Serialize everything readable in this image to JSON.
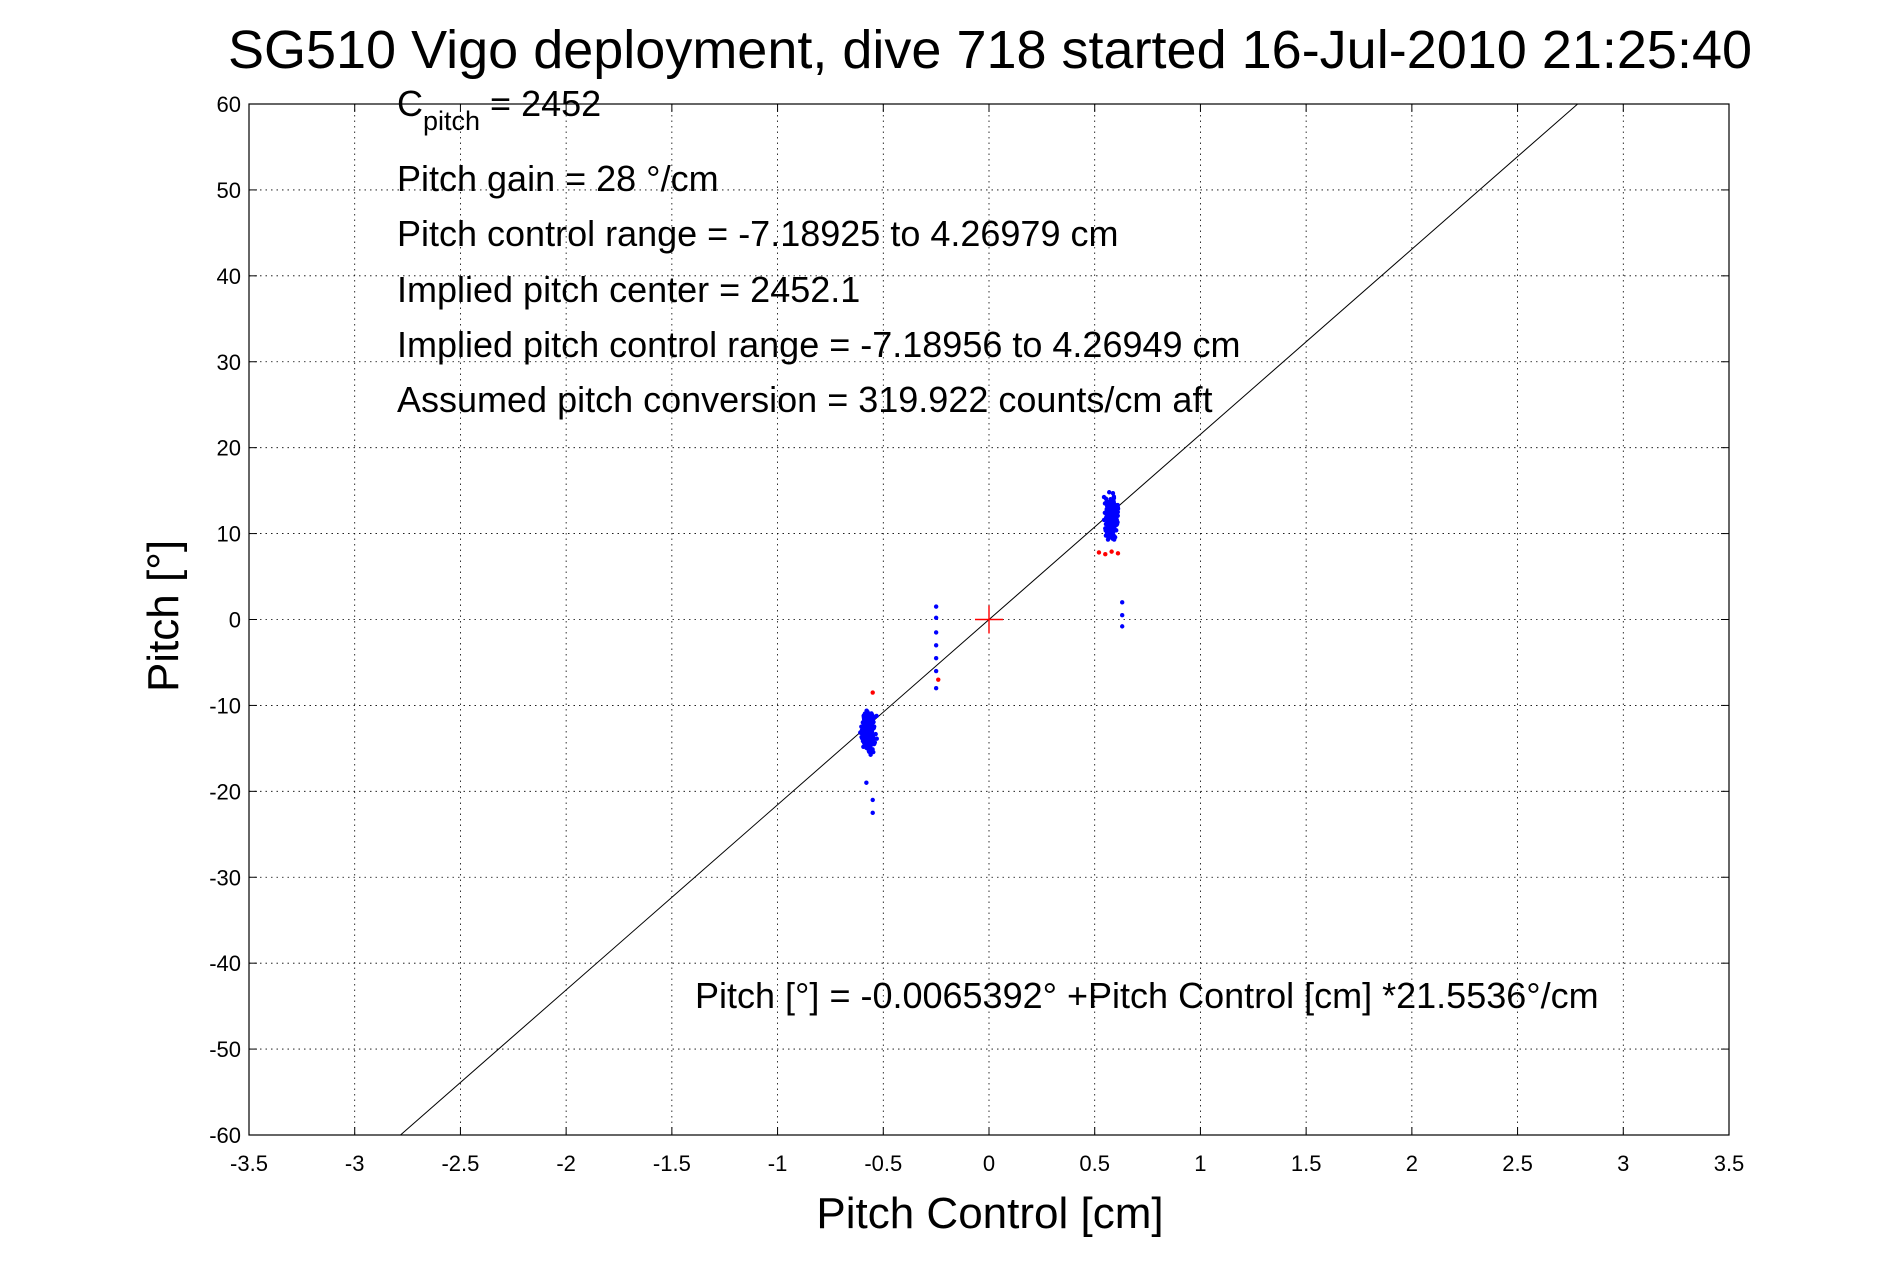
{
  "chart_data": {
    "type": "scatter",
    "title": "SG510 Vigo deployment, dive 718 started 16-Jul-2010 21:25:40",
    "xlabel": "Pitch Control [cm]",
    "ylabel": "Pitch [°]",
    "xlim": [
      -3.5,
      3.5
    ],
    "ylim": [
      -60,
      60
    ],
    "grid": true,
    "x_ticks": [
      -3.5,
      -3,
      -2.5,
      -2,
      -1.5,
      -1,
      -0.5,
      0,
      0.5,
      1,
      1.5,
      2,
      2.5,
      3,
      3.5
    ],
    "y_ticks": [
      -60,
      -50,
      -40,
      -30,
      -20,
      -10,
      0,
      10,
      20,
      30,
      40,
      50,
      60
    ],
    "annotations": {
      "c_pitch_symbol": "C",
      "c_pitch_subscript": "pitch",
      "c_pitch_value": " = 2452",
      "pitch_gain": "Pitch gain = 28 °/cm",
      "control_range": "Pitch control range = -7.18925 to 4.26979 cm",
      "implied_center": "Implied pitch center = 2452.1",
      "implied_range": "Implied pitch control range = -7.18956 to 4.26949 cm",
      "conversion": "Assumed pitch conversion = 319.922 counts/cm aft",
      "fit_equation": "Pitch [°] = -0.0065392° +Pitch Control [cm] *21.5536°/cm"
    },
    "fit_line": {
      "intercept": -0.0065392,
      "slope": 21.5536,
      "color": "#000000"
    },
    "center_marker": {
      "x": 0,
      "y": 0,
      "color": "#ff0000"
    },
    "series": [
      {
        "color": "#0000ff",
        "marker": "dot",
        "clusters": [
          {
            "x_center": 0.58,
            "x_spread": 0.05,
            "y_center": 12,
            "y_spread": 3.5,
            "count": 320
          },
          {
            "x_center": -0.57,
            "x_spread": 0.05,
            "y_center": -13,
            "y_spread": 3.5,
            "count": 300
          }
        ],
        "extra_points": [
          [
            -0.25,
            1.5
          ],
          [
            -0.25,
            0.2
          ],
          [
            -0.25,
            -1.5
          ],
          [
            -0.25,
            -3
          ],
          [
            -0.25,
            -4.5
          ],
          [
            -0.25,
            -6
          ],
          [
            -0.25,
            -8
          ],
          [
            0.63,
            2
          ],
          [
            0.63,
            0.5
          ],
          [
            0.63,
            -0.8
          ],
          [
            -0.55,
            -22.5
          ],
          [
            -0.55,
            -21
          ],
          [
            -0.58,
            -19
          ]
        ]
      },
      {
        "color": "#ff0000",
        "marker": "dot",
        "points": [
          [
            -0.24,
            -7
          ],
          [
            0.52,
            7.8
          ],
          [
            0.55,
            7.6
          ],
          [
            0.58,
            7.9
          ],
          [
            0.61,
            7.7
          ],
          [
            -0.55,
            -8.5
          ]
        ]
      }
    ]
  }
}
